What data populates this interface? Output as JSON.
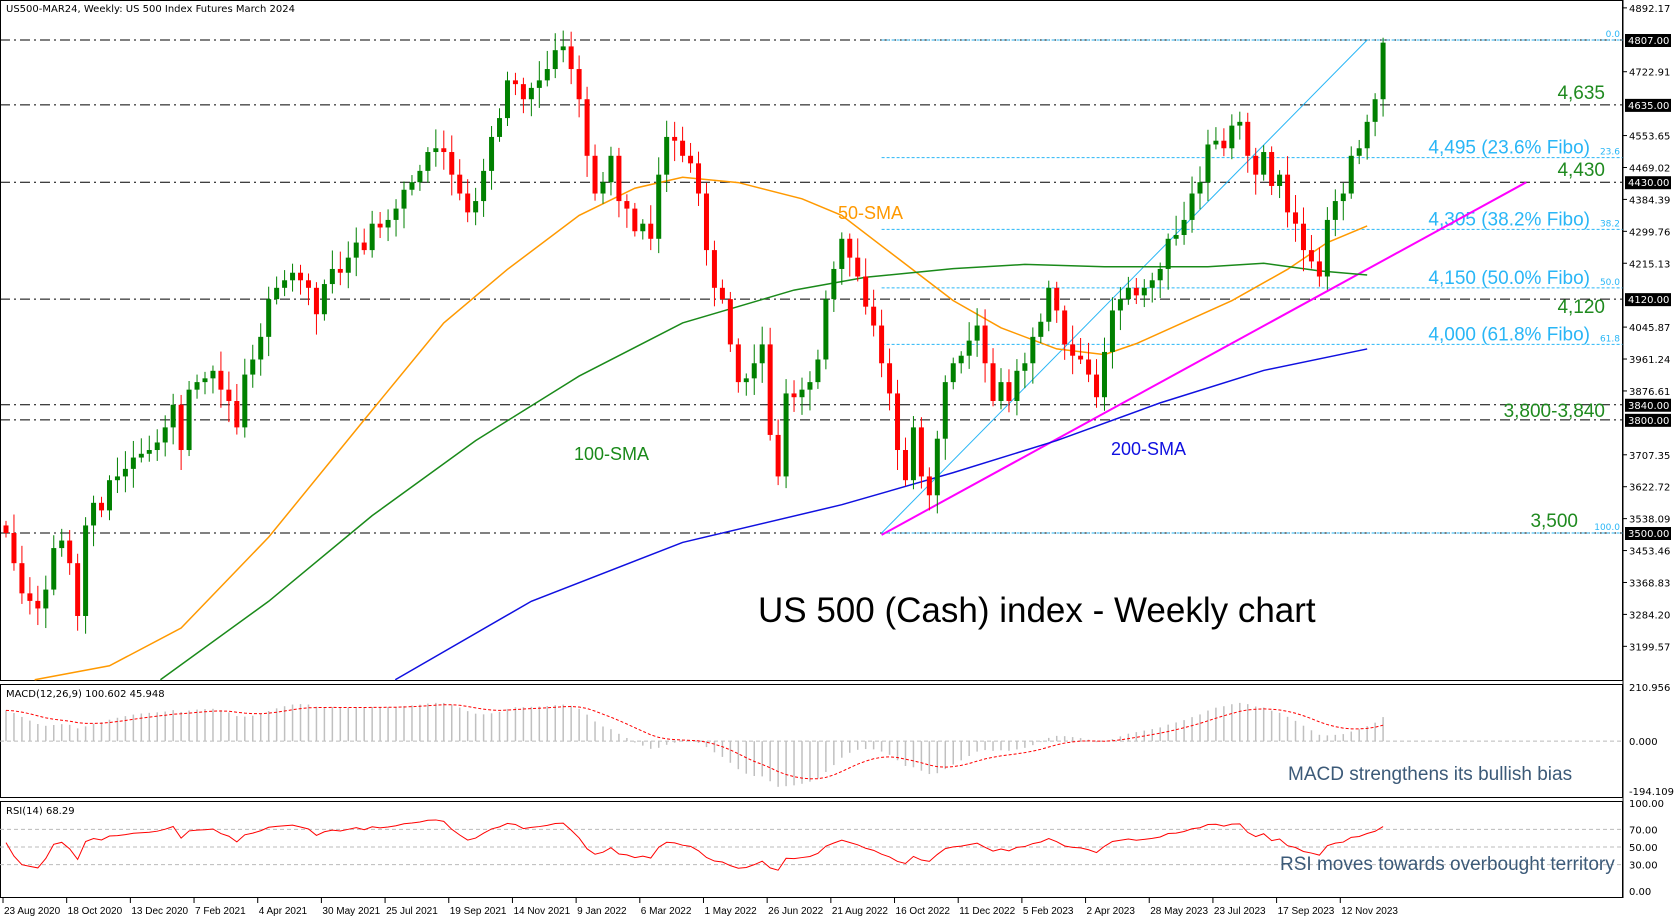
{
  "header": {
    "title": "US500-MAR24, Weekly:  US 500 Index Futures March 2024"
  },
  "colors": {
    "bull": "#008000",
    "bear": "#ff0000",
    "sma50": "#ff9900",
    "sma100": "#1a8a1a",
    "sma200": "#1010e0",
    "trend": "#ff00ff",
    "fibo": "#29b6f6"
  },
  "price_axis": {
    "ticks": [
      "4892.17",
      "4722.91",
      "4553.65",
      "4469.02",
      "4384.39",
      "4299.76",
      "4215.13",
      "4045.87",
      "3961.24",
      "3876.61",
      "3707.35",
      "3622.72",
      "3538.09",
      "3453.46",
      "3368.83",
      "3284.20",
      "3199.57"
    ],
    "tick_values": [
      4892.17,
      4722.91,
      4553.65,
      4469.02,
      4384.39,
      4299.76,
      4215.13,
      4045.87,
      3961.24,
      3876.61,
      3707.35,
      3622.72,
      3538.09,
      3453.46,
      3368.83,
      3284.2,
      3199.57
    ],
    "tags": [
      "4807.00",
      "4635.00",
      "4430.00",
      "4120.00",
      "3840.00",
      "3800.00",
      "3500.00"
    ],
    "tag_values": [
      4807,
      4635,
      4430,
      4120,
      3840,
      3800,
      3500
    ]
  },
  "annotations": {
    "chart_title": "US 500 (Cash) index - Weekly chart",
    "sma50": "50-SMA",
    "sma100": "100-SMA",
    "sma200": "200-SMA",
    "levels": [
      {
        "text": "4,635",
        "value": 4635
      },
      {
        "text": "4,430",
        "value": 4430
      },
      {
        "text": "4,120",
        "value": 4120
      },
      {
        "text": "3,800-3,840",
        "value": 3800
      },
      {
        "text": "3,500",
        "value": 3500
      }
    ],
    "fibo": [
      {
        "text": "",
        "pct": "0.0",
        "value": 4807
      },
      {
        "text": "4,495 (23.6% Fibo)",
        "pct": "23.6",
        "value": 4495
      },
      {
        "text": "4,305 (38.2% Fibo)",
        "pct": "38.2",
        "value": 4305
      },
      {
        "text": "4,150 (50.0% Fibo)",
        "pct": "50.0",
        "value": 4150
      },
      {
        "text": "4,000 (61.8% Fibo)",
        "pct": "61.8",
        "value": 4000
      },
      {
        "text": "",
        "pct": "100.0",
        "value": 3500
      }
    ]
  },
  "macd": {
    "label": "MACD(12,26,9) 100.602 45.948",
    "note": "MACD strengthens its bullish bias",
    "ticks": [
      "210.956",
      "0.000",
      "-194.109"
    ],
    "range": [
      -194.109,
      210.956
    ]
  },
  "rsi": {
    "label": "RSI(14) 68.29",
    "note": "RSI moves towards overbought territory",
    "ticks": [
      "100.00",
      "70.00",
      "50.00",
      "30.00",
      "0.00"
    ],
    "levels": [
      100,
      70,
      50,
      30,
      0
    ]
  },
  "dates": [
    "23 Aug 2020",
    "18 Oct 2020",
    "13 Dec 2020",
    "7 Feb 2021",
    "4 Apr 2021",
    "30 May 2021",
    "25 Jul 2021",
    "19 Sep 2021",
    "14 Nov 2021",
    "9 Jan 2022",
    "6 Mar 2022",
    "1 May 2022",
    "26 Jun 2022",
    "21 Aug 2022",
    "16 Oct 2022",
    "11 Dec 2022",
    "5 Feb 2023",
    "2 Apr 2023",
    "28 May 2023",
    "23 Jul 2023",
    "17 Sep 2023",
    "12 Nov 2023"
  ],
  "chart_data": {
    "type": "candlestick",
    "title": "US500-MAR24, Weekly",
    "ylim": [
      3110,
      4900
    ],
    "first_open": 3520,
    "closes": [
      3500,
      3420,
      3340,
      3320,
      3300,
      3350,
      3460,
      3480,
      3420,
      3280,
      3520,
      3580,
      3560,
      3640,
      3650,
      3670,
      3700,
      3710,
      3720,
      3740,
      3780,
      3840,
      3720,
      3880,
      3900,
      3910,
      3930,
      3880,
      3850,
      3780,
      3920,
      3960,
      4020,
      4120,
      4150,
      4170,
      4190,
      4170,
      4150,
      4080,
      4160,
      4200,
      4190,
      4230,
      4270,
      4250,
      4320,
      4310,
      4330,
      4360,
      4410,
      4430,
      4460,
      4510,
      4520,
      4510,
      4450,
      4400,
      4350,
      4380,
      4460,
      4550,
      4600,
      4700,
      4690,
      4650,
      4680,
      4700,
      4730,
      4780,
      4790,
      4730,
      4650,
      4500,
      4400,
      4430,
      4500,
      4380,
      4360,
      4300,
      4320,
      4280,
      4450,
      4550,
      4540,
      4500,
      4480,
      4400,
      4250,
      4150,
      4120,
      4000,
      3900,
      3910,
      3950,
      4000,
      3760,
      3650,
      3870,
      3860,
      3880,
      3900,
      3960,
      4120,
      4200,
      4280,
      4230,
      4180,
      4100,
      4050,
      3950,
      3870,
      3720,
      3640,
      3780,
      3650,
      3600,
      3750,
      3900,
      3950,
      3970,
      4010,
      4050,
      3950,
      3850,
      3900,
      3850,
      3930,
      3950,
      4020,
      4060,
      4150,
      4090,
      4000,
      3970,
      3960,
      3920,
      3860,
      3980,
      4090,
      4120,
      4150,
      4130,
      4150,
      4170,
      4200,
      4280,
      4290,
      4330,
      4400,
      4430,
      4530,
      4540,
      4520,
      4580,
      4590,
      4500,
      4450,
      4510,
      4420,
      4450,
      4350,
      4320,
      4250,
      4220,
      4180,
      4330,
      4380,
      4400,
      4500,
      4520,
      4590,
      4650,
      4800
    ],
    "sma50": [
      [
        3.6,
        3111
      ],
      [
        13,
        3148
      ],
      [
        22,
        3248
      ],
      [
        33,
        3489
      ],
      [
        45,
        3800
      ],
      [
        55,
        4057
      ],
      [
        63,
        4199
      ],
      [
        72,
        4342
      ],
      [
        79,
        4414
      ],
      [
        85,
        4443
      ],
      [
        92,
        4429
      ],
      [
        100,
        4386
      ],
      [
        105,
        4342
      ],
      [
        112,
        4229
      ],
      [
        119,
        4116
      ],
      [
        125,
        4044
      ],
      [
        132,
        3988
      ],
      [
        138,
        3973
      ],
      [
        142,
        4002
      ],
      [
        148,
        4059
      ],
      [
        154,
        4116
      ],
      [
        161,
        4199
      ],
      [
        166,
        4270
      ],
      [
        171,
        4314
      ]
    ],
    "sma100": [
      [
        19.4,
        3111
      ],
      [
        33,
        3319
      ],
      [
        46,
        3546
      ],
      [
        59,
        3745
      ],
      [
        72,
        3916
      ],
      [
        85,
        4057
      ],
      [
        99,
        4144
      ],
      [
        108,
        4178
      ],
      [
        119,
        4201
      ],
      [
        128,
        4212
      ],
      [
        138,
        4206
      ],
      [
        151,
        4206
      ],
      [
        158,
        4215
      ],
      [
        165,
        4195
      ],
      [
        171,
        4184
      ]
    ],
    "sma200": [
      [
        48.9,
        3111
      ],
      [
        66,
        3319
      ],
      [
        85,
        3475
      ],
      [
        105,
        3575
      ],
      [
        119,
        3660
      ],
      [
        132,
        3745
      ],
      [
        145,
        3845
      ],
      [
        158,
        3931
      ],
      [
        171,
        3988
      ]
    ],
    "trendline": [
      [
        110,
        3495
      ],
      [
        191,
        4430
      ]
    ],
    "fibo_line": [
      [
        110,
        3500
      ],
      [
        171,
        4807
      ]
    ],
    "horizontal_levels": [
      4807,
      4635,
      4430,
      4120,
      3840,
      3800,
      3500
    ]
  }
}
